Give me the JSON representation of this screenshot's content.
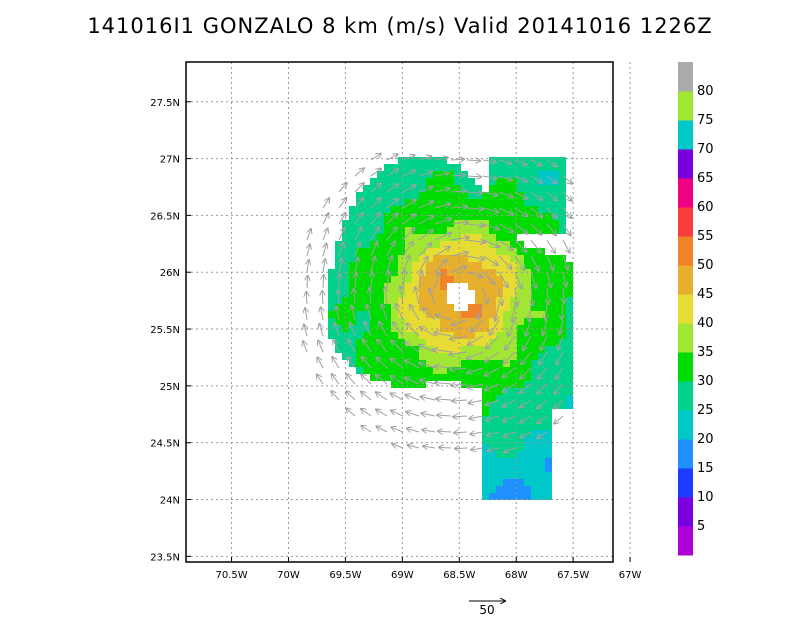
{
  "chart_data": {
    "type": "heatmap",
    "title": "141016I1 GONZALO 8 km (m/s) Valid 20141016 1226Z",
    "x_ticks": [
      "70.5W",
      "70W",
      "69.5W",
      "69W",
      "68.5W",
      "68W",
      "67.5W",
      "67W"
    ],
    "x_values": [
      -70.5,
      -70.0,
      -69.5,
      -69.0,
      -68.5,
      -68.0,
      -67.5,
      -67.0
    ],
    "y_ticks": [
      "27.5N",
      "27N",
      "26.5N",
      "26N",
      "25.5N",
      "25N",
      "24.5N",
      "24N",
      "23.5N"
    ],
    "y_values": [
      27.5,
      27.0,
      26.5,
      26.0,
      25.5,
      25.0,
      24.5,
      24.0,
      23.5
    ],
    "xlim": [
      -70.9,
      -67.15
    ],
    "ylim": [
      23.45,
      27.85
    ],
    "grid": true,
    "storm_center": {
      "lon": -68.5,
      "lat": 25.8
    },
    "colorbar": {
      "labels": [
        "5",
        "10",
        "15",
        "20",
        "25",
        "30",
        "35",
        "40",
        "45",
        "50",
        "55",
        "60",
        "65",
        "70",
        "75",
        "80"
      ],
      "levels": [
        0,
        5,
        10,
        15,
        20,
        25,
        30,
        35,
        40,
        45,
        50,
        55,
        60,
        65,
        70,
        75,
        80,
        85
      ],
      "colors": [
        "#b000d8",
        "#7a00e0",
        "#1e3cff",
        "#1e90ff",
        "#00c8c8",
        "#00d28c",
        "#00dc00",
        "#a0e632",
        "#e6dc32",
        "#e6af2d",
        "#f08228",
        "#fa3c3c",
        "#f00082",
        "#7800dc",
        "#00c8c8",
        "#a0e632",
        "#aaaaaa"
      ]
    },
    "reference_vector": {
      "label": "50",
      "speed": 50
    }
  }
}
